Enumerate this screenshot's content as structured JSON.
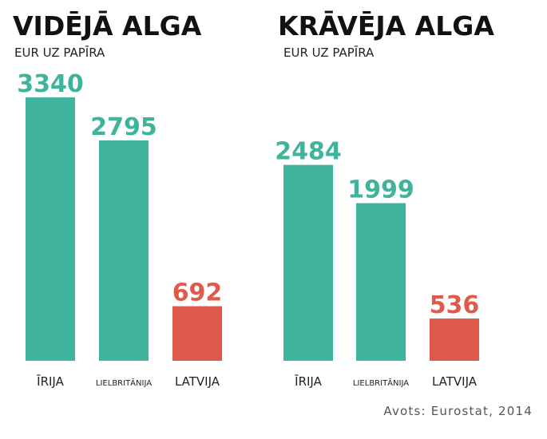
{
  "source": "Avots: Eurostat, 2014",
  "colors": {
    "highlight": "#e05a4b",
    "default": "#3fb39c"
  },
  "chart_data": [
    {
      "type": "bar",
      "title": "VIDĒJĀ ALGA",
      "subtitle": "EUR UZ PAPĪRA",
      "categories": [
        "ĪRIJA",
        "LIELBRITĀNIJA",
        "LATVIJA"
      ],
      "values": [
        3340,
        2795,
        692
      ],
      "highlight": [
        "LATVIJA"
      ],
      "ylim": [
        0,
        3340
      ]
    },
    {
      "type": "bar",
      "title": "KRĀVĒJA ALGA",
      "subtitle": "EUR UZ PAPĪRA",
      "categories": [
        "ĪRIJA",
        "LIELBRITĀNIJA",
        "LATVIJA"
      ],
      "values": [
        2484,
        1999,
        536
      ],
      "highlight": [
        "LATVIJA"
      ],
      "ylim": [
        0,
        3340
      ]
    }
  ]
}
